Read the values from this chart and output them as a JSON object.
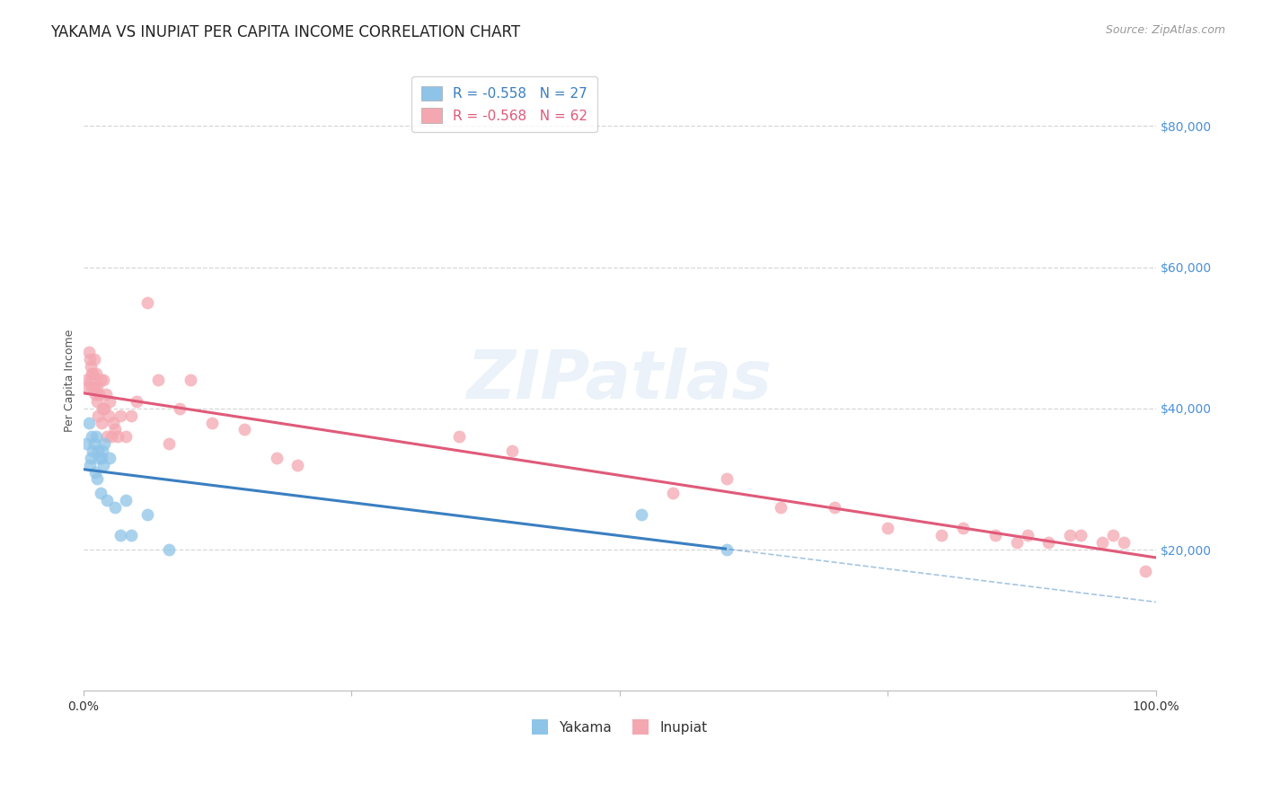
{
  "title": "YAKAMA VS INUPIAT PER CAPITA INCOME CORRELATION CHART",
  "source": "Source: ZipAtlas.com",
  "ylabel": "Per Capita Income",
  "y_ticks": [
    20000,
    40000,
    60000,
    80000
  ],
  "y_tick_labels": [
    "$20,000",
    "$40,000",
    "$60,000",
    "$80,000"
  ],
  "watermark": "ZIPatlas",
  "yakama_color": "#8ec4e8",
  "inupiat_color": "#f4a7b0",
  "line_yakama_color": "#3a7fc1",
  "line_inupiat_color": "#e05a7a",
  "background_color": "#ffffff",
  "grid_color": "#d3d3d3",
  "yakama_x": [
    0.003,
    0.005,
    0.006,
    0.007,
    0.008,
    0.009,
    0.01,
    0.011,
    0.012,
    0.013,
    0.014,
    0.015,
    0.016,
    0.017,
    0.018,
    0.019,
    0.02,
    0.022,
    0.025,
    0.03,
    0.035,
    0.04,
    0.045,
    0.06,
    0.08,
    0.52,
    0.6
  ],
  "yakama_y": [
    35000,
    38000,
    32000,
    33000,
    36000,
    34000,
    35000,
    31000,
    36000,
    30000,
    34000,
    33000,
    28000,
    33000,
    34000,
    32000,
    35000,
    27000,
    33000,
    26000,
    22000,
    27000,
    22000,
    25000,
    20000,
    25000,
    20000
  ],
  "inupiat_x": [
    0.003,
    0.004,
    0.005,
    0.006,
    0.007,
    0.007,
    0.008,
    0.008,
    0.009,
    0.01,
    0.01,
    0.011,
    0.012,
    0.013,
    0.013,
    0.014,
    0.015,
    0.016,
    0.017,
    0.018,
    0.019,
    0.02,
    0.021,
    0.022,
    0.024,
    0.025,
    0.026,
    0.028,
    0.03,
    0.032,
    0.035,
    0.04,
    0.045,
    0.05,
    0.06,
    0.07,
    0.08,
    0.09,
    0.1,
    0.12,
    0.15,
    0.18,
    0.2,
    0.35,
    0.4,
    0.55,
    0.6,
    0.65,
    0.7,
    0.75,
    0.8,
    0.82,
    0.85,
    0.87,
    0.88,
    0.9,
    0.92,
    0.93,
    0.95,
    0.96,
    0.97,
    0.99
  ],
  "inupiat_y": [
    44000,
    43000,
    48000,
    47000,
    44000,
    46000,
    45000,
    43000,
    45000,
    43000,
    47000,
    42000,
    45000,
    41000,
    43000,
    39000,
    42000,
    44000,
    38000,
    40000,
    44000,
    40000,
    42000,
    36000,
    39000,
    41000,
    36000,
    38000,
    37000,
    36000,
    39000,
    36000,
    39000,
    41000,
    55000,
    44000,
    35000,
    40000,
    44000,
    38000,
    37000,
    33000,
    32000,
    36000,
    34000,
    28000,
    30000,
    26000,
    26000,
    23000,
    22000,
    23000,
    22000,
    21000,
    22000,
    21000,
    22000,
    22000,
    21000,
    22000,
    21000,
    17000
  ],
  "xmin": 0.0,
  "xmax": 1.0,
  "ymin": 0,
  "ymax": 88000,
  "title_fontsize": 12,
  "axis_label_fontsize": 9,
  "tick_fontsize": 10,
  "legend_fontsize": 11,
  "source_fontsize": 9,
  "ytick_color": "#4a90d9",
  "xtick_color": "#333333"
}
